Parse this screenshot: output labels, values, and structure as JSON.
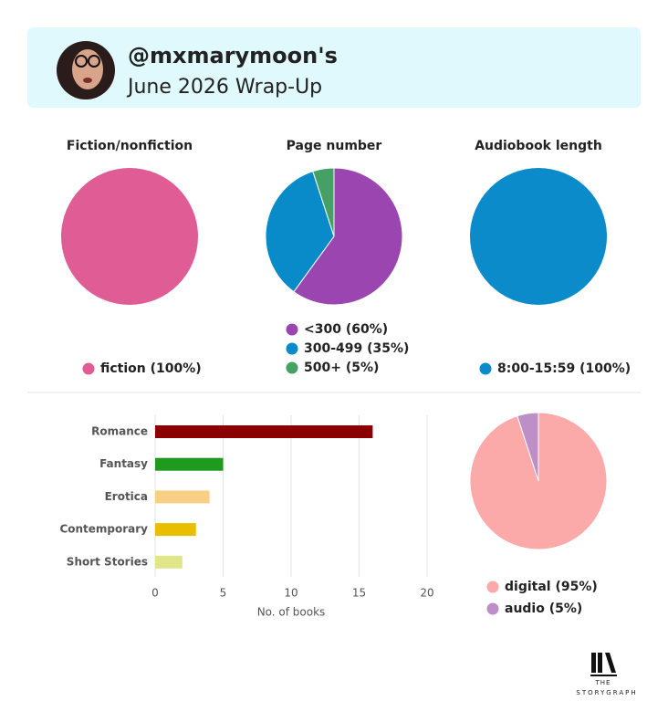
{
  "header": {
    "username": "@mxmarymoon's",
    "subtitle": "June 2026 Wrap-Up"
  },
  "footer": {
    "logo_top": "THE",
    "logo_bottom": "STORYGRAPH"
  },
  "chart_data": [
    {
      "type": "pie",
      "title": "Fiction/nonfiction",
      "categories": [
        "fiction"
      ],
      "values": [
        100
      ],
      "value_labels": [
        "(100%)"
      ],
      "colors": [
        "#e05c94"
      ]
    },
    {
      "type": "pie",
      "title": "Page number",
      "categories": [
        "<300",
        "300-499",
        "500+"
      ],
      "values": [
        60,
        35,
        5
      ],
      "value_labels": [
        "(60%)",
        "(35%)",
        "(5%)"
      ],
      "colors": [
        "#9b45b0",
        "#0a8bc9",
        "#45a065"
      ]
    },
    {
      "type": "pie",
      "title": "Audiobook length",
      "categories": [
        "8:00-15:59"
      ],
      "values": [
        100
      ],
      "value_labels": [
        "(100%)"
      ],
      "colors": [
        "#0b8bc9"
      ]
    },
    {
      "type": "hbar",
      "categories": [
        "Romance",
        "Fantasy",
        "Erotica",
        "Contemporary",
        "Short Stories"
      ],
      "values": [
        16,
        5,
        4,
        3,
        2
      ],
      "colors": [
        "#8b0000",
        "#1e9a1e",
        "#f9cf86",
        "#e8bf00",
        "#e1e68a"
      ],
      "xlim": [
        0,
        20
      ],
      "xticks": [
        0,
        5,
        10,
        15,
        20
      ],
      "xlabel": "No. of books",
      "grid": true
    },
    {
      "type": "pie",
      "categories": [
        "digital",
        "audio"
      ],
      "values": [
        95,
        5
      ],
      "value_labels": [
        "(95%)",
        "(5%)"
      ],
      "colors": [
        "#fba9a9",
        "#be8fc6"
      ]
    }
  ]
}
